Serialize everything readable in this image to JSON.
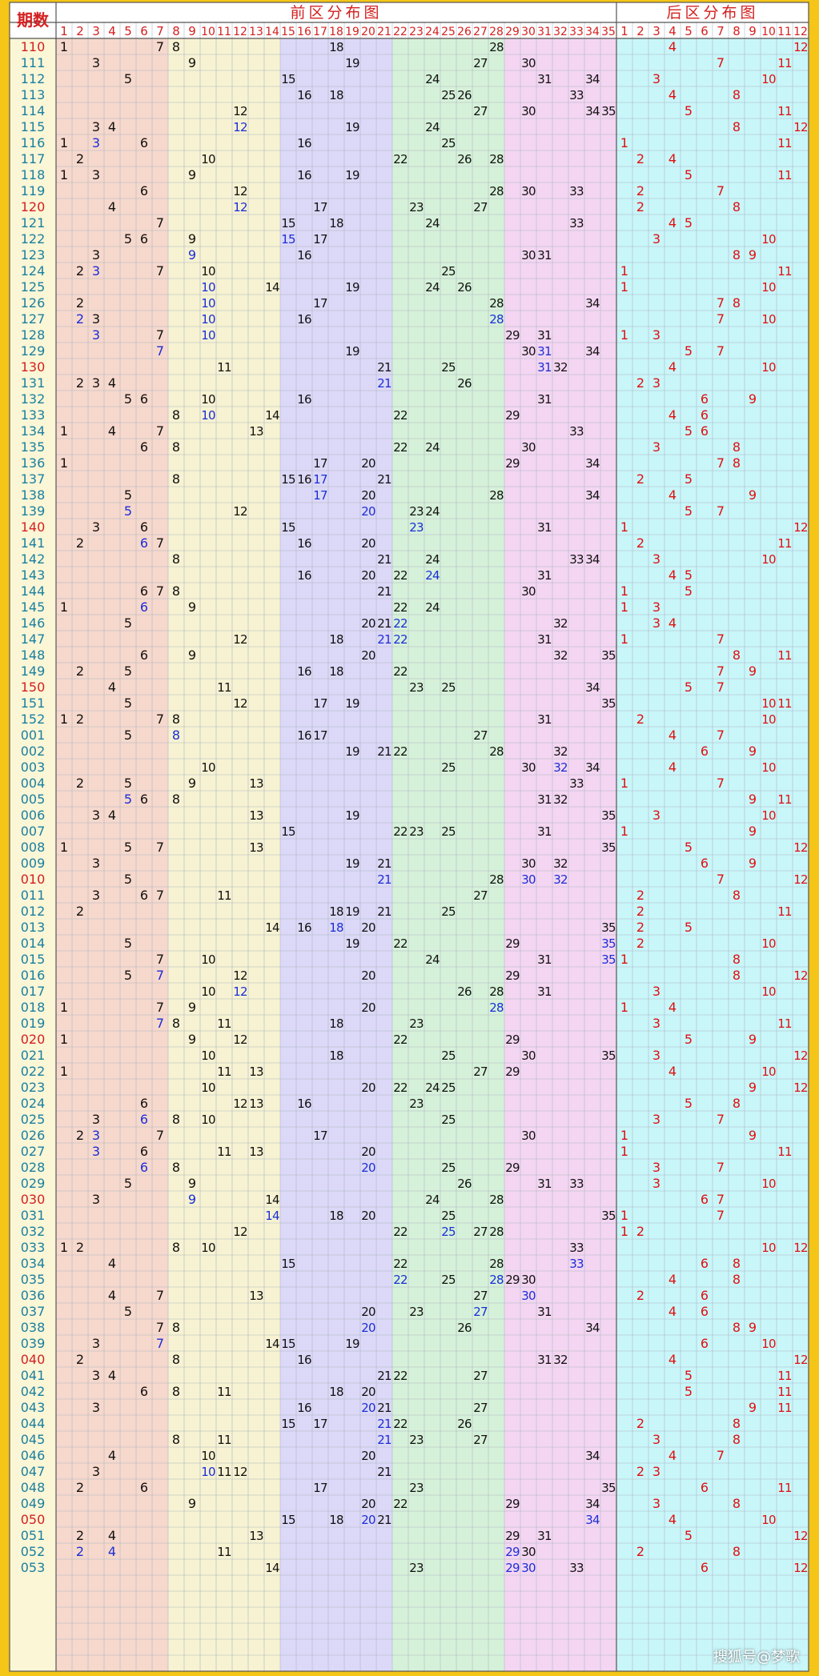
{
  "header": {
    "period_label": "期数",
    "front_title": "前区分布图",
    "back_title": "后区分布图"
  },
  "front_columns": [
    1,
    2,
    3,
    4,
    5,
    6,
    7,
    8,
    9,
    10,
    11,
    12,
    13,
    14,
    15,
    16,
    17,
    18,
    19,
    20,
    21,
    22,
    23,
    24,
    25,
    26,
    27,
    28,
    29,
    30,
    31,
    32,
    33,
    34,
    35
  ],
  "back_columns": [
    1,
    2,
    3,
    4,
    5,
    6,
    7,
    8,
    9,
    10,
    11,
    12
  ],
  "colors": {
    "frame": "#f5c518",
    "title_red": "#d42020",
    "period_teal": "#1a7fa0",
    "period_red": "#d42020",
    "front_number": "#111111",
    "consecutive_blue": "#1a2fd6",
    "back_number": "#e01010",
    "grid": "#aeb8c4",
    "zone_fill": [
      "#f6d8cc",
      "#f7f2d2",
      "#dcd8f7",
      "#d6f1d9",
      "#f4d6f2"
    ],
    "back_fill": "#c9f6f9"
  },
  "chart_data": {
    "type": "table",
    "title": "前区分布图 / 后区分布图",
    "rows": [
      {
        "period": "110",
        "front": [
          1,
          7,
          8,
          18,
          28
        ],
        "back": [
          4,
          12
        ]
      },
      {
        "period": "111",
        "front": [
          3,
          9,
          19,
          27,
          30
        ],
        "back": [
          7,
          11
        ]
      },
      {
        "period": "112",
        "front": [
          5,
          15,
          24,
          31,
          34
        ],
        "back": [
          3,
          10
        ]
      },
      {
        "period": "113",
        "front": [
          16,
          18,
          25,
          26,
          33
        ],
        "back": [
          4,
          8
        ]
      },
      {
        "period": "114",
        "front": [
          12,
          27,
          30,
          34,
          35
        ],
        "back": [
          5,
          11
        ]
      },
      {
        "period": "115",
        "front": [
          3,
          4,
          12,
          19,
          24
        ],
        "back": [
          8,
          12
        ]
      },
      {
        "period": "116",
        "front": [
          1,
          3,
          6,
          16,
          25
        ],
        "back": [
          1,
          11
        ]
      },
      {
        "period": "117",
        "front": [
          2,
          10,
          22,
          26,
          28
        ],
        "back": [
          2,
          4
        ]
      },
      {
        "period": "118",
        "front": [
          1,
          3,
          9,
          16,
          19
        ],
        "back": [
          5,
          11
        ]
      },
      {
        "period": "119",
        "front": [
          6,
          12,
          28,
          30,
          33
        ],
        "back": [
          2,
          7
        ]
      },
      {
        "period": "120",
        "front": [
          4,
          12,
          17,
          23,
          27
        ],
        "back": [
          2,
          8
        ]
      },
      {
        "period": "121",
        "front": [
          7,
          15,
          18,
          24,
          33
        ],
        "back": [
          4,
          5
        ]
      },
      {
        "period": "122",
        "front": [
          5,
          6,
          9,
          15,
          17
        ],
        "back": [
          3,
          10
        ]
      },
      {
        "period": "123",
        "front": [
          3,
          9,
          16,
          30,
          31
        ],
        "back": [
          8,
          9
        ]
      },
      {
        "period": "124",
        "front": [
          2,
          3,
          7,
          10,
          25
        ],
        "back": [
          1,
          11
        ]
      },
      {
        "period": "125",
        "front": [
          10,
          14,
          19,
          24,
          26
        ],
        "back": [
          1,
          10
        ]
      },
      {
        "period": "126",
        "front": [
          2,
          10,
          17,
          28,
          34
        ],
        "back": [
          7,
          8
        ]
      },
      {
        "period": "127",
        "front": [
          2,
          3,
          10,
          16,
          28
        ],
        "back": [
          7,
          10
        ]
      },
      {
        "period": "128",
        "front": [
          3,
          7,
          10,
          29,
          31
        ],
        "back": [
          1,
          3
        ]
      },
      {
        "period": "129",
        "front": [
          7,
          19,
          30,
          31,
          34
        ],
        "back": [
          5,
          7
        ]
      },
      {
        "period": "130",
        "front": [
          11,
          21,
          25,
          31,
          32
        ],
        "back": [
          4,
          10
        ]
      },
      {
        "period": "131",
        "front": [
          2,
          3,
          4,
          21,
          26
        ],
        "back": [
          2,
          3
        ]
      },
      {
        "period": "132",
        "front": [
          5,
          6,
          10,
          16,
          31
        ],
        "back": [
          6,
          9
        ]
      },
      {
        "period": "133",
        "front": [
          8,
          10,
          14,
          22,
          29
        ],
        "back": [
          4,
          6
        ]
      },
      {
        "period": "134",
        "front": [
          1,
          4,
          7,
          13,
          33
        ],
        "back": [
          5,
          6
        ]
      },
      {
        "period": "135",
        "front": [
          6,
          8,
          22,
          24,
          30
        ],
        "back": [
          3,
          8
        ]
      },
      {
        "period": "136",
        "front": [
          1,
          17,
          20,
          29,
          34
        ],
        "back": [
          7,
          8
        ]
      },
      {
        "period": "137",
        "front": [
          8,
          15,
          16,
          17,
          21
        ],
        "back": [
          2,
          5
        ]
      },
      {
        "period": "138",
        "front": [
          5,
          17,
          20,
          28,
          34
        ],
        "back": [
          4,
          9
        ]
      },
      {
        "period": "139",
        "front": [
          5,
          12,
          20,
          23,
          24
        ],
        "back": [
          5,
          7
        ]
      },
      {
        "period": "140",
        "front": [
          3,
          6,
          15,
          23,
          31
        ],
        "back": [
          1,
          12
        ]
      },
      {
        "period": "141",
        "front": [
          2,
          6,
          7,
          16,
          20
        ],
        "back": [
          2,
          11
        ]
      },
      {
        "period": "142",
        "front": [
          8,
          21,
          24,
          33,
          34
        ],
        "back": [
          3,
          10
        ]
      },
      {
        "period": "143",
        "front": [
          16,
          20,
          22,
          24,
          31
        ],
        "back": [
          4,
          5
        ]
      },
      {
        "period": "144",
        "front": [
          6,
          7,
          8,
          21,
          30
        ],
        "back": [
          1,
          5
        ]
      },
      {
        "period": "145",
        "front": [
          1,
          6,
          9,
          22,
          24
        ],
        "back": [
          1,
          3
        ]
      },
      {
        "period": "146",
        "front": [
          5,
          20,
          21,
          22,
          32
        ],
        "back": [
          3,
          4
        ]
      },
      {
        "period": "147",
        "front": [
          12,
          18,
          21,
          22,
          31
        ],
        "back": [
          1,
          7
        ]
      },
      {
        "period": "148",
        "front": [
          6,
          9,
          20,
          32,
          35
        ],
        "back": [
          8,
          11
        ]
      },
      {
        "period": "149",
        "front": [
          2,
          5,
          16,
          18,
          22
        ],
        "back": [
          7,
          9
        ]
      },
      {
        "period": "150",
        "front": [
          4,
          11,
          23,
          25,
          34
        ],
        "back": [
          5,
          7
        ]
      },
      {
        "period": "151",
        "front": [
          5,
          12,
          17,
          19,
          35
        ],
        "back": [
          10,
          11
        ]
      },
      {
        "period": "152",
        "front": [
          1,
          2,
          7,
          8,
          31
        ],
        "back": [
          2,
          10
        ]
      },
      {
        "period": "001",
        "front": [
          5,
          8,
          16,
          17,
          27
        ],
        "back": [
          4,
          7
        ]
      },
      {
        "period": "002",
        "front": [
          19,
          21,
          22,
          28,
          32
        ],
        "back": [
          6,
          9
        ]
      },
      {
        "period": "003",
        "front": [
          10,
          25,
          30,
          32,
          34
        ],
        "back": [
          4,
          10
        ]
      },
      {
        "period": "004",
        "front": [
          2,
          5,
          9,
          13,
          33
        ],
        "back": [
          1,
          7
        ]
      },
      {
        "period": "005",
        "front": [
          5,
          6,
          8,
          31,
          32
        ],
        "back": [
          9,
          11
        ]
      },
      {
        "period": "006",
        "front": [
          3,
          4,
          13,
          19,
          35
        ],
        "back": [
          3,
          10
        ]
      },
      {
        "period": "007",
        "front": [
          15,
          22,
          23,
          25,
          31
        ],
        "back": [
          1,
          9
        ]
      },
      {
        "period": "008",
        "front": [
          1,
          5,
          7,
          13,
          35
        ],
        "back": [
          5,
          12
        ]
      },
      {
        "period": "009",
        "front": [
          3,
          19,
          21,
          30,
          32
        ],
        "back": [
          6,
          9
        ]
      },
      {
        "period": "010",
        "front": [
          5,
          21,
          28,
          30,
          32
        ],
        "back": [
          7,
          12
        ]
      },
      {
        "period": "011",
        "front": [
          3,
          6,
          7,
          11,
          27
        ],
        "back": [
          2,
          8
        ]
      },
      {
        "period": "012",
        "front": [
          2,
          18,
          19,
          21,
          25
        ],
        "back": [
          2,
          11
        ]
      },
      {
        "period": "013",
        "front": [
          14,
          16,
          18,
          20,
          35
        ],
        "back": [
          2,
          5
        ]
      },
      {
        "period": "014",
        "front": [
          5,
          19,
          22,
          29,
          35
        ],
        "back": [
          2,
          10
        ]
      },
      {
        "period": "015",
        "front": [
          7,
          10,
          24,
          31,
          35
        ],
        "back": [
          1,
          8
        ]
      },
      {
        "period": "016",
        "front": [
          5,
          7,
          12,
          20,
          29
        ],
        "back": [
          8,
          12
        ]
      },
      {
        "period": "017",
        "front": [
          10,
          12,
          26,
          28,
          31
        ],
        "back": [
          3,
          10
        ]
      },
      {
        "period": "018",
        "front": [
          1,
          7,
          9,
          20,
          28
        ],
        "back": [
          1,
          4
        ]
      },
      {
        "period": "019",
        "front": [
          7,
          8,
          11,
          18,
          23
        ],
        "back": [
          3,
          11
        ]
      },
      {
        "period": "020",
        "front": [
          1,
          9,
          12,
          22,
          29
        ],
        "back": [
          5,
          9
        ]
      },
      {
        "period": "021",
        "front": [
          10,
          18,
          25,
          30,
          35
        ],
        "back": [
          3,
          12
        ]
      },
      {
        "period": "022",
        "front": [
          1,
          11,
          13,
          27,
          29
        ],
        "back": [
          4,
          10
        ]
      },
      {
        "period": "023",
        "front": [
          10,
          20,
          22,
          24,
          25
        ],
        "back": [
          9,
          12
        ]
      },
      {
        "period": "024",
        "front": [
          6,
          12,
          13,
          16,
          23
        ],
        "back": [
          5,
          8
        ]
      },
      {
        "period": "025",
        "front": [
          3,
          6,
          8,
          10,
          25
        ],
        "back": [
          3,
          7
        ]
      },
      {
        "period": "026",
        "front": [
          2,
          3,
          7,
          17,
          30
        ],
        "back": [
          1,
          9
        ]
      },
      {
        "period": "027",
        "front": [
          3,
          6,
          11,
          13,
          20
        ],
        "back": [
          1,
          11
        ]
      },
      {
        "period": "028",
        "front": [
          6,
          8,
          20,
          25,
          29
        ],
        "back": [
          3,
          7
        ]
      },
      {
        "period": "029",
        "front": [
          5,
          9,
          26,
          31,
          33
        ],
        "back": [
          3,
          10
        ]
      },
      {
        "period": "030",
        "front": [
          3,
          9,
          14,
          24,
          28
        ],
        "back": [
          6,
          7
        ]
      },
      {
        "period": "031",
        "front": [
          14,
          18,
          20,
          25,
          35
        ],
        "back": [
          1,
          7
        ]
      },
      {
        "period": "032",
        "front": [
          12,
          22,
          25,
          27,
          28
        ],
        "back": [
          1,
          2
        ]
      },
      {
        "period": "033",
        "front": [
          1,
          2,
          8,
          10,
          33
        ],
        "back": [
          10,
          12
        ]
      },
      {
        "period": "034",
        "front": [
          4,
          15,
          22,
          28,
          33
        ],
        "back": [
          6,
          8
        ]
      },
      {
        "period": "035",
        "front": [
          22,
          25,
          28,
          29,
          30
        ],
        "back": [
          4,
          8
        ]
      },
      {
        "period": "036",
        "front": [
          4,
          7,
          13,
          27,
          30
        ],
        "back": [
          2,
          6
        ]
      },
      {
        "period": "037",
        "front": [
          5,
          20,
          23,
          27,
          31
        ],
        "back": [
          4,
          6
        ]
      },
      {
        "period": "038",
        "front": [
          7,
          8,
          20,
          26,
          34
        ],
        "back": [
          8,
          9
        ]
      },
      {
        "period": "039",
        "front": [
          3,
          7,
          14,
          15,
          19
        ],
        "back": [
          6,
          10
        ]
      },
      {
        "period": "040",
        "front": [
          2,
          8,
          16,
          31,
          32
        ],
        "back": [
          4,
          12
        ]
      },
      {
        "period": "041",
        "front": [
          3,
          4,
          21,
          22,
          27
        ],
        "back": [
          5,
          11
        ]
      },
      {
        "period": "042",
        "front": [
          6,
          8,
          11,
          18,
          20
        ],
        "back": [
          5,
          11
        ]
      },
      {
        "period": "043",
        "front": [
          3,
          16,
          20,
          21,
          27
        ],
        "back": [
          9,
          11
        ]
      },
      {
        "period": "044",
        "front": [
          15,
          17,
          21,
          22,
          26
        ],
        "back": [
          2,
          8
        ]
      },
      {
        "period": "045",
        "front": [
          8,
          11,
          21,
          23,
          27
        ],
        "back": [
          3,
          8
        ]
      },
      {
        "period": "046",
        "front": [
          4,
          10,
          20,
          34
        ],
        "back": [
          4,
          7
        ]
      },
      {
        "period": "047",
        "front": [
          3,
          10,
          11,
          12,
          21
        ],
        "back": [
          2,
          3
        ]
      },
      {
        "period": "048",
        "front": [
          2,
          6,
          17,
          23,
          35
        ],
        "back": [
          6,
          11
        ]
      },
      {
        "period": "049",
        "front": [
          9,
          20,
          22,
          29,
          34
        ],
        "back": [
          3,
          8
        ]
      },
      {
        "period": "050",
        "front": [
          15,
          18,
          20,
          21,
          34
        ],
        "back": [
          4,
          10
        ]
      },
      {
        "period": "051",
        "front": [
          2,
          4,
          13,
          29,
          31
        ],
        "back": [
          5,
          12
        ]
      },
      {
        "period": "052",
        "front": [
          2,
          4,
          11,
          29,
          30
        ],
        "back": [
          2,
          8
        ]
      },
      {
        "period": "053",
        "front": [
          14,
          23,
          29,
          30,
          33
        ],
        "back": [
          6,
          12
        ]
      }
    ]
  },
  "watermark": "搜狐号@梦歌"
}
